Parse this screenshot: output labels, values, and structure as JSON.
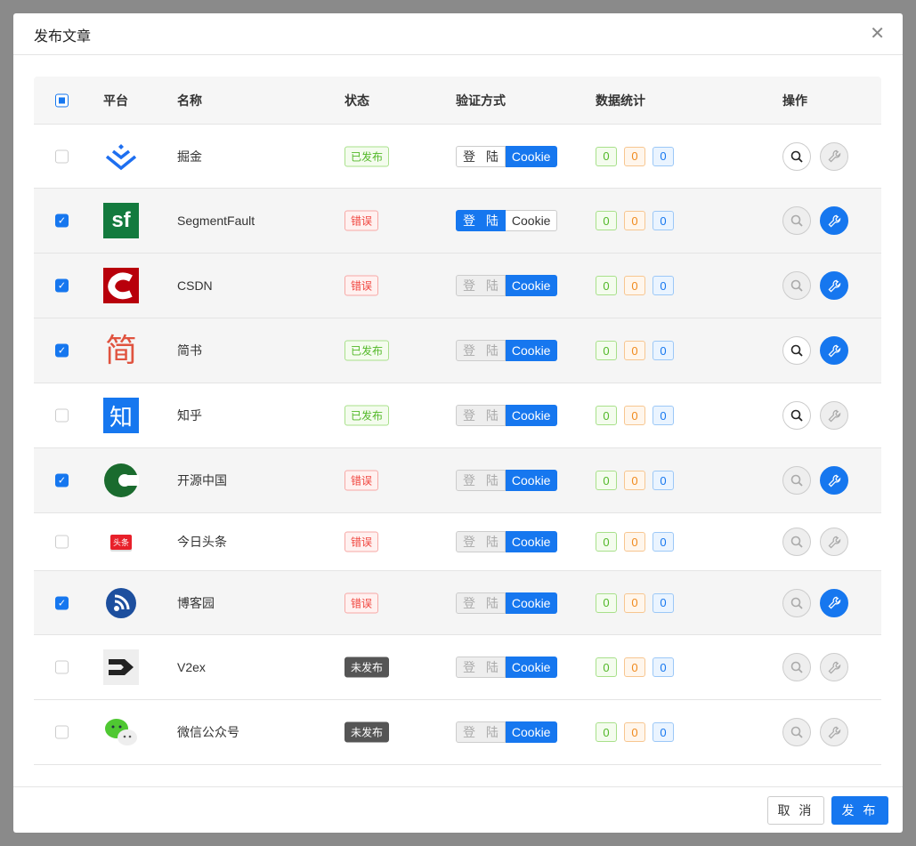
{
  "dialog": {
    "title": "发布文章",
    "close_icon": "close-icon"
  },
  "table": {
    "headers": {
      "platform": "平台",
      "name": "名称",
      "status": "状态",
      "auth": "验证方式",
      "stats": "数据统计",
      "ops": "操作"
    },
    "select_all": "indeterminate"
  },
  "colors": {
    "accent": "#1677ef",
    "published": "#52b828",
    "error": "#f0463f",
    "unpublished": "#555555"
  },
  "rows": [
    {
      "logo": "juejin",
      "name": "掘金",
      "checked": false,
      "status": "已发布",
      "status_type": "ok",
      "login": "登 陆",
      "cookie": "Cookie",
      "auth": "cookie",
      "login_enabled": true,
      "stats": [
        "0",
        "0",
        "0"
      ],
      "search_enabled": true,
      "config_enabled": false
    },
    {
      "logo": "segmentfault",
      "logo_text": "sf",
      "name": "SegmentFault",
      "checked": true,
      "status": "错误",
      "status_type": "err",
      "login": "登 陆",
      "cookie": "Cookie",
      "auth": "login",
      "login_enabled": true,
      "stats": [
        "0",
        "0",
        "0"
      ],
      "search_enabled": false,
      "config_enabled": true
    },
    {
      "logo": "csdn",
      "name": "CSDN",
      "checked": true,
      "status": "错误",
      "status_type": "err",
      "login": "登 陆",
      "cookie": "Cookie",
      "auth": "cookie",
      "login_enabled": false,
      "stats": [
        "0",
        "0",
        "0"
      ],
      "search_enabled": false,
      "config_enabled": true
    },
    {
      "logo": "jianshu",
      "logo_text": "简",
      "name": "简书",
      "checked": true,
      "status": "已发布",
      "status_type": "ok",
      "login": "登 陆",
      "cookie": "Cookie",
      "auth": "cookie",
      "login_enabled": false,
      "stats": [
        "0",
        "0",
        "0"
      ],
      "search_enabled": true,
      "config_enabled": true
    },
    {
      "logo": "zhihu",
      "logo_text": "知",
      "name": "知乎",
      "checked": false,
      "status": "已发布",
      "status_type": "ok",
      "login": "登 陆",
      "cookie": "Cookie",
      "auth": "cookie",
      "login_enabled": false,
      "stats": [
        "0",
        "0",
        "0"
      ],
      "search_enabled": true,
      "config_enabled": false
    },
    {
      "logo": "oschina",
      "name": "开源中国",
      "checked": true,
      "status": "错误",
      "status_type": "err",
      "login": "登 陆",
      "cookie": "Cookie",
      "auth": "cookie",
      "login_enabled": false,
      "stats": [
        "0",
        "0",
        "0"
      ],
      "search_enabled": false,
      "config_enabled": true
    },
    {
      "logo": "toutiao",
      "logo_text": "头条",
      "name": "今日头条",
      "checked": false,
      "status": "错误",
      "status_type": "err",
      "login": "登 陆",
      "cookie": "Cookie",
      "auth": "cookie",
      "login_enabled": false,
      "stats": [
        "0",
        "0",
        "0"
      ],
      "search_enabled": false,
      "config_enabled": false
    },
    {
      "logo": "cnblogs",
      "name": "博客园",
      "checked": true,
      "status": "错误",
      "status_type": "err",
      "login": "登 陆",
      "cookie": "Cookie",
      "auth": "cookie",
      "login_enabled": false,
      "stats": [
        "0",
        "0",
        "0"
      ],
      "search_enabled": false,
      "config_enabled": true
    },
    {
      "logo": "v2ex",
      "name": "V2ex",
      "checked": false,
      "status": "未发布",
      "status_type": "none",
      "login": "登 陆",
      "cookie": "Cookie",
      "auth": "cookie",
      "login_enabled": false,
      "stats": [
        "0",
        "0",
        "0"
      ],
      "search_enabled": false,
      "config_enabled": false
    },
    {
      "logo": "wechat",
      "name": "微信公众号",
      "checked": false,
      "status": "未发布",
      "status_type": "none",
      "login": "登 陆",
      "cookie": "Cookie",
      "auth": "cookie",
      "login_enabled": false,
      "stats": [
        "0",
        "0",
        "0"
      ],
      "search_enabled": false,
      "config_enabled": false
    }
  ],
  "footer": {
    "cancel": "取 消",
    "publish": "发 布"
  }
}
